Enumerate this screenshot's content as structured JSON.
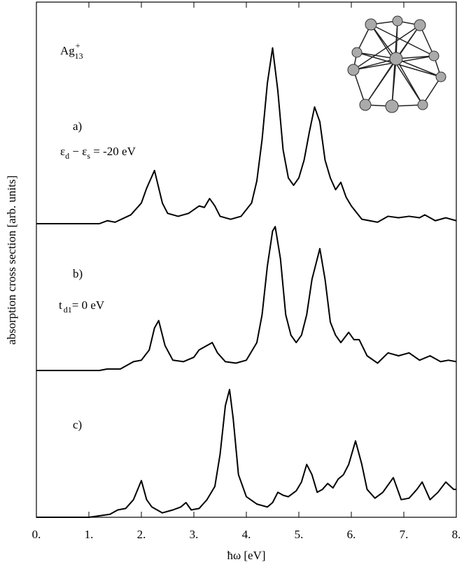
{
  "chart_data": [
    {
      "type": "line",
      "color": "#000000",
      "title": {
        "base": "Ag",
        "sub": "13",
        "sup": "+"
      },
      "label": "a)",
      "annotation": {
        "t1": "ε",
        "s1": "d",
        "t2": " − ε",
        "s2": "s",
        "t3": " = -20 eV"
      },
      "xlim": [
        0,
        8
      ],
      "ylim": [
        0,
        1.5
      ],
      "x": [
        0,
        0.5,
        1.0,
        1.2,
        1.35,
        1.5,
        1.8,
        2.0,
        2.1,
        2.25,
        2.4,
        2.5,
        2.7,
        2.9,
        3.1,
        3.2,
        3.3,
        3.4,
        3.5,
        3.7,
        3.9,
        4.1,
        4.2,
        4.3,
        4.4,
        4.5,
        4.6,
        4.7,
        4.8,
        4.9,
        5.0,
        5.1,
        5.2,
        5.3,
        5.4,
        5.5,
        5.6,
        5.7,
        5.8,
        5.9,
        6.0,
        6.2,
        6.5,
        6.7,
        6.9,
        7.1,
        7.3,
        7.4,
        7.6,
        7.8,
        8.0
      ],
      "values": [
        0,
        0,
        0,
        0,
        0.02,
        0.01,
        0.06,
        0.14,
        0.24,
        0.36,
        0.14,
        0.07,
        0.05,
        0.07,
        0.12,
        0.11,
        0.17,
        0.12,
        0.05,
        0.03,
        0.05,
        0.14,
        0.29,
        0.57,
        0.95,
        1.19,
        0.9,
        0.5,
        0.31,
        0.26,
        0.31,
        0.43,
        0.62,
        0.79,
        0.69,
        0.43,
        0.31,
        0.23,
        0.28,
        0.18,
        0.12,
        0.03,
        0.01,
        0.05,
        0.04,
        0.05,
        0.04,
        0.06,
        0.02,
        0.04,
        0.02
      ]
    },
    {
      "type": "line",
      "color": "#000000",
      "label": "b)",
      "annotation": {
        "t1": "t",
        "s1": "d1",
        "t2": "= 0 eV"
      },
      "ylabel": "absorption cross section [arb. units]",
      "xlim": [
        0,
        8
      ],
      "ylim": [
        0,
        1
      ],
      "x": [
        0,
        0.5,
        1.0,
        1.2,
        1.35,
        1.6,
        1.85,
        2.0,
        2.15,
        2.25,
        2.33,
        2.45,
        2.6,
        2.8,
        3.0,
        3.1,
        3.2,
        3.35,
        3.45,
        3.6,
        3.8,
        4.0,
        4.2,
        4.3,
        4.4,
        4.5,
        4.55,
        4.65,
        4.75,
        4.85,
        4.95,
        5.05,
        5.15,
        5.25,
        5.4,
        5.5,
        5.6,
        5.7,
        5.8,
        5.95,
        6.05,
        6.15,
        6.3,
        6.5,
        6.7,
        6.9,
        7.1,
        7.3,
        7.5,
        7.7,
        7.85,
        8.0
      ],
      "values": [
        0,
        0,
        0,
        0,
        0.01,
        0.01,
        0.06,
        0.07,
        0.14,
        0.29,
        0.34,
        0.17,
        0.07,
        0.06,
        0.09,
        0.14,
        0.16,
        0.19,
        0.12,
        0.06,
        0.05,
        0.07,
        0.19,
        0.38,
        0.71,
        0.95,
        0.98,
        0.76,
        0.38,
        0.24,
        0.19,
        0.24,
        0.38,
        0.62,
        0.83,
        0.62,
        0.33,
        0.24,
        0.19,
        0.26,
        0.21,
        0.21,
        0.1,
        0.05,
        0.12,
        0.1,
        0.12,
        0.07,
        0.1,
        0.06,
        0.07,
        0.06
      ]
    },
    {
      "type": "line",
      "color": "#000000",
      "label": "c)",
      "xlabel": "ħω [eV]",
      "xlim": [
        0,
        8
      ],
      "ylim": [
        0,
        1
      ],
      "xticks": [
        {
          "value": 0,
          "label": "0."
        },
        {
          "value": 1,
          "label": "1."
        },
        {
          "value": 2,
          "label": "2."
        },
        {
          "value": 3,
          "label": "3."
        },
        {
          "value": 4,
          "label": "4."
        },
        {
          "value": 5,
          "label": "5."
        },
        {
          "value": 6,
          "label": "6."
        },
        {
          "value": 7,
          "label": "7."
        },
        {
          "value": 8,
          "label": "8."
        }
      ],
      "x": [
        0,
        0.5,
        1.0,
        1.2,
        1.4,
        1.55,
        1.7,
        1.85,
        2.0,
        2.1,
        2.2,
        2.4,
        2.6,
        2.75,
        2.85,
        2.95,
        3.1,
        3.25,
        3.4,
        3.5,
        3.6,
        3.68,
        3.75,
        3.85,
        4.0,
        4.2,
        4.4,
        4.5,
        4.6,
        4.7,
        4.8,
        4.95,
        5.05,
        5.15,
        5.25,
        5.35,
        5.45,
        5.55,
        5.65,
        5.75,
        5.85,
        5.95,
        6.08,
        6.2,
        6.3,
        6.45,
        6.6,
        6.8,
        6.95,
        7.1,
        7.25,
        7.35,
        7.5,
        7.65,
        7.8,
        7.95,
        8.0
      ],
      "values": [
        0,
        0,
        0,
        0.01,
        0.02,
        0.05,
        0.06,
        0.12,
        0.25,
        0.12,
        0.07,
        0.03,
        0.05,
        0.07,
        0.1,
        0.05,
        0.06,
        0.12,
        0.21,
        0.43,
        0.76,
        0.87,
        0.67,
        0.29,
        0.14,
        0.09,
        0.07,
        0.1,
        0.17,
        0.15,
        0.14,
        0.18,
        0.24,
        0.36,
        0.29,
        0.17,
        0.19,
        0.23,
        0.2,
        0.26,
        0.29,
        0.36,
        0.52,
        0.36,
        0.19,
        0.13,
        0.17,
        0.27,
        0.12,
        0.13,
        0.19,
        0.24,
        0.12,
        0.17,
        0.24,
        0.19,
        0.19
      ]
    }
  ]
}
